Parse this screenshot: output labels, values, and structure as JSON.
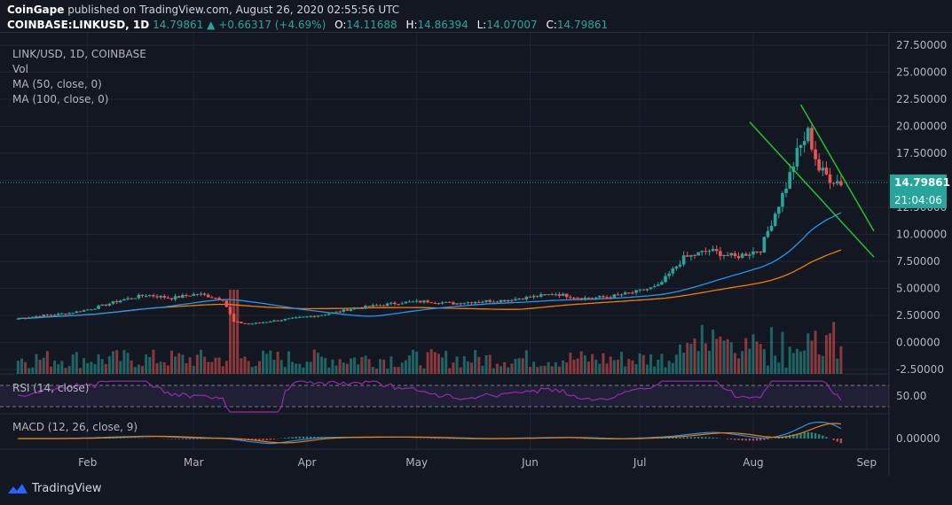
{
  "header": {
    "publisher_line_prefix": "CoinGape",
    "publisher_line_rest": " published on TradingView.com, August 26, 2020 02:55:56 UTC",
    "symbol": "COINBASE:LINKUSD, 1D",
    "last": "14.79861",
    "change": "+0.66317 (+4.69%)",
    "o_label": "O:",
    "o": "14.11688",
    "h_label": "H:",
    "h": "14.86394",
    "l_label": "L:",
    "l": "14.07007",
    "c_label": "C:",
    "c": "14.79861"
  },
  "legend": {
    "title": "LINK/USD, 1D, COINBASE",
    "vol": "Vol",
    "ma50": "MA (50, close, 0)",
    "ma100": "MA (100, close, 0)",
    "rsi": "RSI (14, close)",
    "macd": "MACD (12, 26, close, 9)"
  },
  "price_label": {
    "value": "14.79861",
    "countdown": "21:04:06"
  },
  "footer": {
    "brand": "TradingView"
  },
  "colors": {
    "background": "#131722",
    "up": "#26a69a",
    "down": "#ef5350",
    "ma50": "#2196f3",
    "ma100": "#f57c00",
    "rsi": "#9c27b0",
    "trendline": "#22c22b",
    "grid": "#1f2430"
  },
  "chart_data": {
    "type": "candlestick",
    "symbol": "LINK/USD",
    "interval": "1D",
    "x_ticks": [
      "Feb",
      "Mar",
      "Apr",
      "May",
      "Jun",
      "Jul",
      "Aug",
      "Sep"
    ],
    "y_ticks": [
      "27.50000",
      "25.00000",
      "22.50000",
      "20.00000",
      "17.50000",
      "15.00000",
      "12.50000",
      "10.00000",
      "7.50000",
      "5.00000",
      "2.50000",
      "0.00000",
      "-2.50000"
    ],
    "ylim": [
      -2.5,
      27.5
    ],
    "close_series": [
      {
        "date": "2020-01-13",
        "close": 2.2
      },
      {
        "date": "2020-01-20",
        "close": 2.5
      },
      {
        "date": "2020-01-27",
        "close": 2.7
      },
      {
        "date": "2020-02-03",
        "close": 3.2
      },
      {
        "date": "2020-02-10",
        "close": 3.9
      },
      {
        "date": "2020-02-17",
        "close": 4.4
      },
      {
        "date": "2020-02-24",
        "close": 4.1
      },
      {
        "date": "2020-03-02",
        "close": 4.5
      },
      {
        "date": "2020-03-09",
        "close": 4.0
      },
      {
        "date": "2020-03-12",
        "close": 1.9
      },
      {
        "date": "2020-03-16",
        "close": 1.7
      },
      {
        "date": "2020-03-23",
        "close": 2.0
      },
      {
        "date": "2020-03-30",
        "close": 2.3
      },
      {
        "date": "2020-04-06",
        "close": 2.6
      },
      {
        "date": "2020-04-13",
        "close": 3.1
      },
      {
        "date": "2020-04-20",
        "close": 3.4
      },
      {
        "date": "2020-04-27",
        "close": 3.7
      },
      {
        "date": "2020-05-04",
        "close": 3.8
      },
      {
        "date": "2020-05-11",
        "close": 3.6
      },
      {
        "date": "2020-05-18",
        "close": 3.8
      },
      {
        "date": "2020-05-25",
        "close": 3.9
      },
      {
        "date": "2020-06-01",
        "close": 4.2
      },
      {
        "date": "2020-06-08",
        "close": 4.5
      },
      {
        "date": "2020-06-15",
        "close": 4.1
      },
      {
        "date": "2020-06-22",
        "close": 4.2
      },
      {
        "date": "2020-06-29",
        "close": 4.6
      },
      {
        "date": "2020-07-06",
        "close": 5.2
      },
      {
        "date": "2020-07-13",
        "close": 7.8
      },
      {
        "date": "2020-07-20",
        "close": 8.5
      },
      {
        "date": "2020-07-27",
        "close": 7.9
      },
      {
        "date": "2020-08-03",
        "close": 8.6
      },
      {
        "date": "2020-08-07",
        "close": 12.0
      },
      {
        "date": "2020-08-10",
        "close": 14.5
      },
      {
        "date": "2020-08-13",
        "close": 17.5
      },
      {
        "date": "2020-08-16",
        "close": 19.4
      },
      {
        "date": "2020-08-19",
        "close": 16.0
      },
      {
        "date": "2020-08-22",
        "close": 15.2
      },
      {
        "date": "2020-08-25",
        "close": 14.8
      }
    ],
    "ma50_last": 10.8,
    "ma100_last": 7.5,
    "trendlines": [
      {
        "name": "upper",
        "start": {
          "date": "2020-08-14",
          "price": 22.0
        },
        "end": {
          "date": "2020-09-03",
          "price": 10.3
        }
      },
      {
        "name": "lower",
        "start": {
          "date": "2020-07-31",
          "price": 20.4
        },
        "end": {
          "date": "2020-09-03",
          "price": 7.9
        }
      }
    ],
    "rsi_levels": [
      70,
      30
    ],
    "rsi_y_tick": "50.00",
    "macd_y_tick": "0.00000"
  }
}
